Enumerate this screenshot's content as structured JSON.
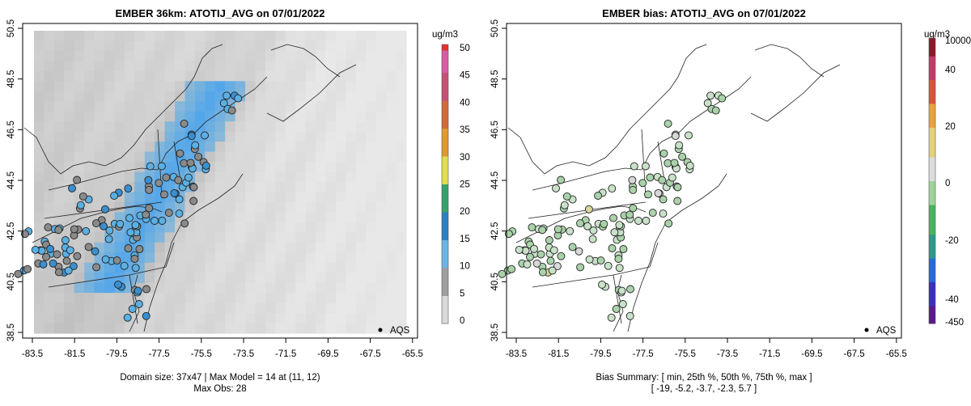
{
  "chart_data": [
    {
      "type": "map",
      "title": "EMBER 36km: ATOTIJ_AVG on 07/01/2022",
      "xticks": [
        "-83.5",
        "-81.5",
        "-79.5",
        "-77.5",
        "-75.5",
        "-73.5",
        "-71.5",
        "-69.5",
        "-67.5",
        "-65.5"
      ],
      "yticks": [
        "38.5",
        "40.5",
        "42.5",
        "44.5",
        "46.5",
        "48.5",
        "50.5"
      ],
      "xlim": [
        -84.5,
        -65.0
      ],
      "ylim": [
        38.5,
        50.5
      ],
      "colorbar": {
        "unit": "ug/m3",
        "min": 0,
        "max": 50,
        "ticks": [
          "0",
          "5",
          "10",
          "15",
          "20",
          "25",
          "30",
          "35",
          "40",
          "45",
          "50"
        ]
      },
      "legend": "AQS",
      "footer": [
        "Domain size: 37x47 | Max Model = 14 at (11, 12)",
        "Max Obs: 28"
      ]
    },
    {
      "type": "map",
      "title": "EMBER bias: ATOTIJ_AVG on 07/01/2022",
      "xticks": [
        "-83.5",
        "-81.5",
        "-79.5",
        "-77.5",
        "-75.5",
        "-73.5",
        "-71.5",
        "-69.5",
        "-67.5",
        "-65.5"
      ],
      "yticks": [
        "38.5",
        "40.5",
        "42.5",
        "44.5",
        "46.5",
        "48.5",
        "50.5"
      ],
      "xlim": [
        -84.5,
        -65.0
      ],
      "ylim": [
        38.5,
        50.5
      ],
      "colorbar": {
        "unit": "ug/m3",
        "ticks": [
          "-450",
          "-40",
          "-20",
          "0",
          "20",
          "40",
          "10000"
        ]
      },
      "legend": "AQS",
      "footer": [
        "Bias Summary: [ min, 25th %, 50th %, 75th %, max ]",
        "[ -19,   -5.2,   -3.7,   -2.3,   5.7 ]"
      ],
      "bias_summary": {
        "min": -19,
        "p25": -5.2,
        "p50": -3.7,
        "p75": -2.3,
        "max": 5.7
      }
    }
  ]
}
